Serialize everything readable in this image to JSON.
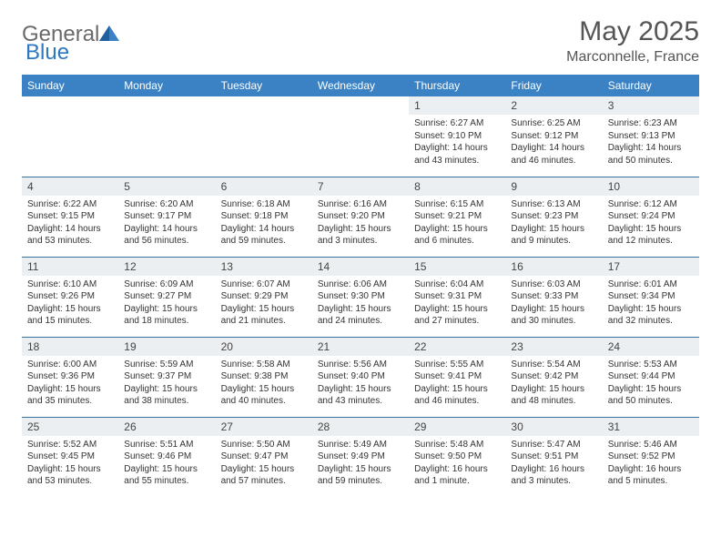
{
  "logo": {
    "part1": "General",
    "part2": "Blue"
  },
  "header": {
    "title": "May 2025",
    "subtitle": "Marconnelle, France"
  },
  "colors": {
    "header_bg": "#3b82c4",
    "header_fg": "#ffffff",
    "row_border": "#3b6fa0",
    "daynum_bg": "#eceff1",
    "title_color": "#555555",
    "logo_gray": "#6a6a6a",
    "logo_blue": "#2f78bf"
  },
  "weekdays": [
    "Sunday",
    "Monday",
    "Tuesday",
    "Wednesday",
    "Thursday",
    "Friday",
    "Saturday"
  ],
  "weeks": [
    [
      null,
      null,
      null,
      null,
      {
        "n": "1",
        "sr": "6:27 AM",
        "ss": "9:10 PM",
        "dl": "14 hours and 43 minutes."
      },
      {
        "n": "2",
        "sr": "6:25 AM",
        "ss": "9:12 PM",
        "dl": "14 hours and 46 minutes."
      },
      {
        "n": "3",
        "sr": "6:23 AM",
        "ss": "9:13 PM",
        "dl": "14 hours and 50 minutes."
      }
    ],
    [
      {
        "n": "4",
        "sr": "6:22 AM",
        "ss": "9:15 PM",
        "dl": "14 hours and 53 minutes."
      },
      {
        "n": "5",
        "sr": "6:20 AM",
        "ss": "9:17 PM",
        "dl": "14 hours and 56 minutes."
      },
      {
        "n": "6",
        "sr": "6:18 AM",
        "ss": "9:18 PM",
        "dl": "14 hours and 59 minutes."
      },
      {
        "n": "7",
        "sr": "6:16 AM",
        "ss": "9:20 PM",
        "dl": "15 hours and 3 minutes."
      },
      {
        "n": "8",
        "sr": "6:15 AM",
        "ss": "9:21 PM",
        "dl": "15 hours and 6 minutes."
      },
      {
        "n": "9",
        "sr": "6:13 AM",
        "ss": "9:23 PM",
        "dl": "15 hours and 9 minutes."
      },
      {
        "n": "10",
        "sr": "6:12 AM",
        "ss": "9:24 PM",
        "dl": "15 hours and 12 minutes."
      }
    ],
    [
      {
        "n": "11",
        "sr": "6:10 AM",
        "ss": "9:26 PM",
        "dl": "15 hours and 15 minutes."
      },
      {
        "n": "12",
        "sr": "6:09 AM",
        "ss": "9:27 PM",
        "dl": "15 hours and 18 minutes."
      },
      {
        "n": "13",
        "sr": "6:07 AM",
        "ss": "9:29 PM",
        "dl": "15 hours and 21 minutes."
      },
      {
        "n": "14",
        "sr": "6:06 AM",
        "ss": "9:30 PM",
        "dl": "15 hours and 24 minutes."
      },
      {
        "n": "15",
        "sr": "6:04 AM",
        "ss": "9:31 PM",
        "dl": "15 hours and 27 minutes."
      },
      {
        "n": "16",
        "sr": "6:03 AM",
        "ss": "9:33 PM",
        "dl": "15 hours and 30 minutes."
      },
      {
        "n": "17",
        "sr": "6:01 AM",
        "ss": "9:34 PM",
        "dl": "15 hours and 32 minutes."
      }
    ],
    [
      {
        "n": "18",
        "sr": "6:00 AM",
        "ss": "9:36 PM",
        "dl": "15 hours and 35 minutes."
      },
      {
        "n": "19",
        "sr": "5:59 AM",
        "ss": "9:37 PM",
        "dl": "15 hours and 38 minutes."
      },
      {
        "n": "20",
        "sr": "5:58 AM",
        "ss": "9:38 PM",
        "dl": "15 hours and 40 minutes."
      },
      {
        "n": "21",
        "sr": "5:56 AM",
        "ss": "9:40 PM",
        "dl": "15 hours and 43 minutes."
      },
      {
        "n": "22",
        "sr": "5:55 AM",
        "ss": "9:41 PM",
        "dl": "15 hours and 46 minutes."
      },
      {
        "n": "23",
        "sr": "5:54 AM",
        "ss": "9:42 PM",
        "dl": "15 hours and 48 minutes."
      },
      {
        "n": "24",
        "sr": "5:53 AM",
        "ss": "9:44 PM",
        "dl": "15 hours and 50 minutes."
      }
    ],
    [
      {
        "n": "25",
        "sr": "5:52 AM",
        "ss": "9:45 PM",
        "dl": "15 hours and 53 minutes."
      },
      {
        "n": "26",
        "sr": "5:51 AM",
        "ss": "9:46 PM",
        "dl": "15 hours and 55 minutes."
      },
      {
        "n": "27",
        "sr": "5:50 AM",
        "ss": "9:47 PM",
        "dl": "15 hours and 57 minutes."
      },
      {
        "n": "28",
        "sr": "5:49 AM",
        "ss": "9:49 PM",
        "dl": "15 hours and 59 minutes."
      },
      {
        "n": "29",
        "sr": "5:48 AM",
        "ss": "9:50 PM",
        "dl": "16 hours and 1 minute."
      },
      {
        "n": "30",
        "sr": "5:47 AM",
        "ss": "9:51 PM",
        "dl": "16 hours and 3 minutes."
      },
      {
        "n": "31",
        "sr": "5:46 AM",
        "ss": "9:52 PM",
        "dl": "16 hours and 5 minutes."
      }
    ]
  ]
}
